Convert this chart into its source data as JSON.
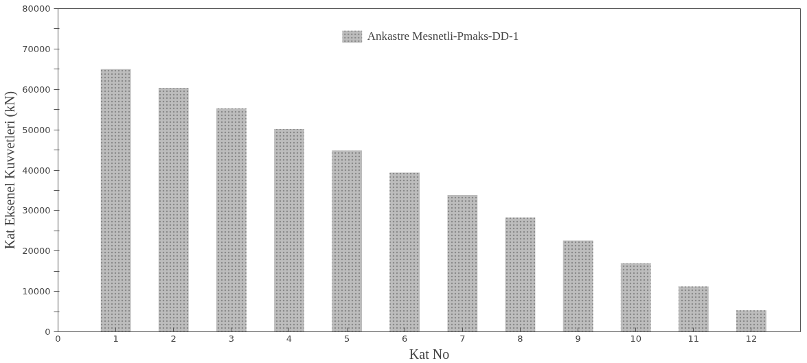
{
  "chart_data": {
    "type": "bar",
    "xlabel": "Kat No",
    "ylabel": "Kat Eksenel Kuvvetleri (kN)",
    "x": [
      1,
      2,
      3,
      4,
      5,
      6,
      7,
      8,
      9,
      10,
      11,
      12
    ],
    "series": [
      {
        "name": "Ankastre Mesnetli-Pmaks-DD-1",
        "color": "#bdbdbd",
        "values": [
          65000,
          60400,
          55300,
          50200,
          44900,
          39400,
          33900,
          28300,
          22600,
          17000,
          11200,
          5300
        ]
      }
    ],
    "xlim": [
      0,
      12.85
    ],
    "xticks": [
      0,
      1,
      2,
      3,
      4,
      5,
      6,
      7,
      8,
      9,
      10,
      11,
      12
    ],
    "ylim": [
      0,
      80000
    ],
    "yticks": [
      0,
      {
        "value": 5000,
        "label": null
      },
      10000,
      {
        "value": 15000,
        "label": null
      },
      20000,
      {
        "value": 25000,
        "label": null
      },
      30000,
      {
        "value": 35000,
        "label": null
      },
      40000,
      {
        "value": 45000,
        "label": null
      },
      50000,
      {
        "value": 55000,
        "label": null
      },
      60000,
      {
        "value": 65000,
        "label": null
      },
      70000,
      {
        "value": 75000,
        "label": null
      },
      80000
    ],
    "grid": false,
    "legend": "top"
  }
}
